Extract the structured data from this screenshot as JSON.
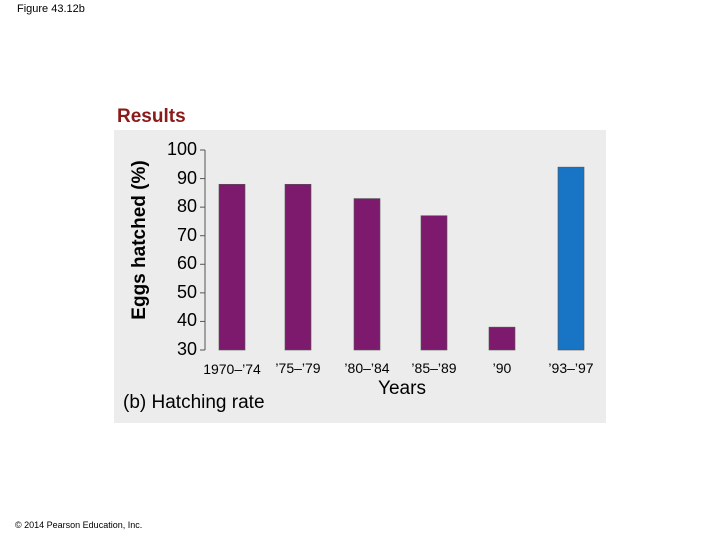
{
  "figure_label": "Figure 43.12b",
  "results_heading": "Results",
  "panel_caption": "(b) Hatching rate",
  "copyright": "© 2014 Pearson Education, Inc.",
  "colors": {
    "purple": "#7d1a6e",
    "blue": "#1874c4",
    "panel": "#ececec"
  },
  "chart_data": {
    "type": "bar",
    "categories": [
      "1970–’74",
      "’75–’79",
      "’80–’84",
      "’85–’89",
      "’90",
      "’93–’97"
    ],
    "values": [
      88,
      88,
      83,
      77,
      38,
      94
    ],
    "bar_colors": [
      "#7d1a6e",
      "#7d1a6e",
      "#7d1a6e",
      "#7d1a6e",
      "#7d1a6e",
      "#1874c4"
    ],
    "xlabel": "Years",
    "ylabel": "Eggs hatched (%)",
    "ylim": [
      30,
      100
    ],
    "yticks": [
      100,
      90,
      80,
      70,
      60,
      50,
      40,
      30
    ],
    "grid": false
  }
}
